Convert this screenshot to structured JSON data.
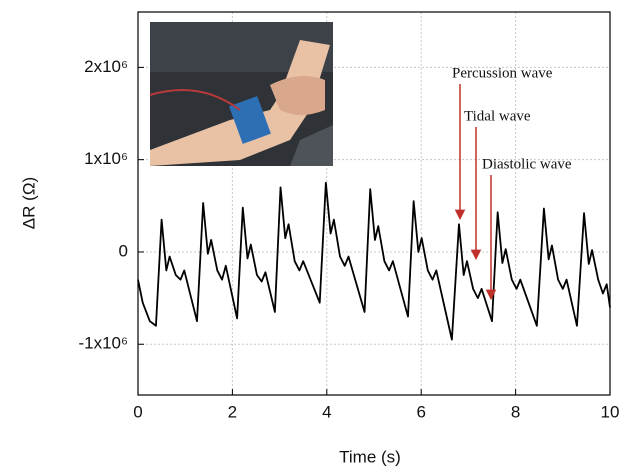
{
  "chart_data": {
    "type": "line",
    "xlabel": "Time (s)",
    "ylabel": "ΔR (Ω)",
    "x": [
      0,
      0.1,
      0.25,
      0.38,
      0.5,
      0.6,
      0.67,
      0.8,
      0.9,
      0.98,
      1.25,
      1.38,
      1.48,
      1.55,
      1.68,
      1.78,
      1.86,
      2.1,
      2.22,
      2.32,
      2.39,
      2.52,
      2.62,
      2.7,
      2.9,
      3.02,
      3.12,
      3.19,
      3.32,
      3.42,
      3.5,
      3.85,
      3.98,
      4.08,
      4.15,
      4.28,
      4.38,
      4.46,
      4.8,
      4.92,
      5.02,
      5.09,
      5.22,
      5.32,
      5.4,
      5.72,
      5.84,
      5.94,
      6.01,
      6.14,
      6.24,
      6.32,
      6.65,
      6.8,
      6.9,
      6.97,
      7.1,
      7.2,
      7.28,
      7.5,
      7.62,
      7.72,
      7.79,
      7.92,
      8.02,
      8.1,
      8.45,
      8.6,
      8.7,
      8.77,
      8.9,
      9.0,
      9.08,
      9.3,
      9.45,
      9.55,
      9.62,
      9.75,
      9.85,
      9.93,
      10
    ],
    "values": [
      -300000,
      -550000,
      -750000,
      -800000,
      350000,
      -200000,
      -50000,
      -250000,
      -300000,
      -200000,
      -750000,
      530000,
      -20000,
      130000,
      -200000,
      -300000,
      -150000,
      -720000,
      480000,
      -70000,
      80000,
      -250000,
      -320000,
      -220000,
      -650000,
      700000,
      150000,
      300000,
      -100000,
      -200000,
      -100000,
      -550000,
      750000,
      200000,
      350000,
      -50000,
      -150000,
      -50000,
      -650000,
      680000,
      130000,
      280000,
      -100000,
      -200000,
      -100000,
      -700000,
      550000,
      0,
      150000,
      -200000,
      -300000,
      -200000,
      -950000,
      300000,
      -250000,
      -100000,
      -400000,
      -500000,
      -400000,
      -750000,
      430000,
      -120000,
      30000,
      -300000,
      -400000,
      -300000,
      -800000,
      470000,
      -80000,
      70000,
      -300000,
      -400000,
      -300000,
      -800000,
      420000,
      -130000,
      20000,
      -300000,
      -450000,
      -350000,
      -600000
    ],
    "color": "#000000",
    "xlim": [
      0,
      10
    ],
    "xticks": [
      0,
      2,
      4,
      6,
      8,
      10
    ],
    "ylim": [
      -1550000,
      2600000
    ],
    "yticks": [
      {
        "value": -1000000,
        "label": "-1x10⁶"
      },
      0,
      {
        "value": 1000000,
        "label": "1x10⁶"
      },
      {
        "value": 2000000,
        "label": "2x10⁶"
      }
    ],
    "grid": true,
    "annotations": [
      "Percussion wave",
      "Tidal wave",
      "Diastolic wave"
    ],
    "annotation_color": "#c0302a"
  }
}
